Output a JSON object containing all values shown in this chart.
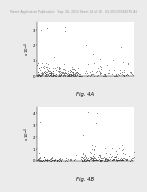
{
  "header_text": "Patent Application Publication   Sep. 26, 2013 Sheet 14 of 16   US 2013/0344070 A1",
  "fig_a_label": "Fig. 4A",
  "fig_b_label": "Fig. 4B",
  "background_color": "#ebebeb",
  "plot_bg": "#ffffff",
  "point_color": "#444444",
  "point_size": 0.3,
  "alpha": 0.85,
  "ylim_a": [
    0,
    0.00035
  ],
  "ylim_b": [
    0,
    0.00045
  ],
  "xlim": [
    0,
    220
  ],
  "seed_a": 42,
  "seed_b": 77,
  "n_points": 300,
  "header_fontsize": 2.2,
  "label_fontsize": 3.8,
  "tick_fontsize": 2.8,
  "ylabel_fontsize": 2.8
}
